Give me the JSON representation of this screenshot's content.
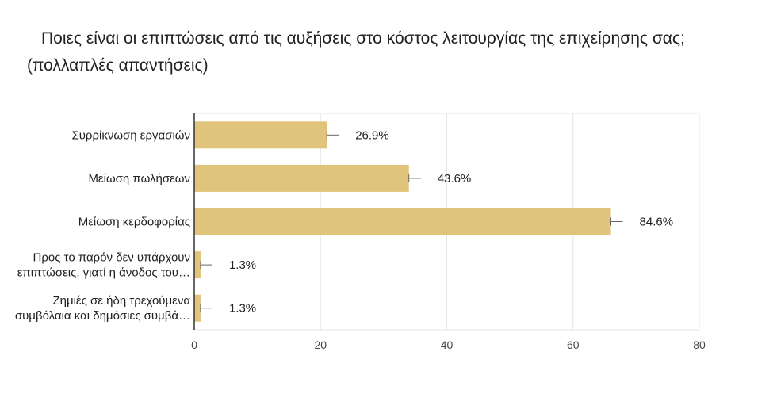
{
  "question": {
    "line1": "Ποιες είναι οι επιπτώσεις από τις αυξήσεις στο κόστος λειτουργίας της επιχείρησης σας;",
    "line2": "(πολλαπλές απαντήσεις)"
  },
  "colors": {
    "bar": "#e1c47c",
    "grid": "#e6e6e6",
    "axis": "#333333",
    "text": "#202124",
    "error": "#666666"
  },
  "chart_data": {
    "type": "bar",
    "orientation": "horizontal",
    "categories": [
      [
        "Συρρίκνωση εργασιών"
      ],
      [
        "Μείωση πωλήσεων"
      ],
      [
        "Μείωση κερδοφορίας"
      ],
      [
        "Προς το παρόν δεν υπάρχουν",
        "επιπτώσεις, γιατί η άνοδος του…"
      ],
      [
        "Ζημιές σε ήδη τρεχούμενα",
        "συμβόλαια και δημόσιες συμβά…"
      ]
    ],
    "values": [
      21,
      34,
      66,
      1,
      1
    ],
    "labels": [
      "26.9%",
      "43.6%",
      "84.6%",
      "1.3%",
      "1.3%"
    ],
    "xlim": [
      0,
      80
    ],
    "xticks": [
      "0",
      "20",
      "40",
      "60",
      "80"
    ],
    "grid": true
  }
}
